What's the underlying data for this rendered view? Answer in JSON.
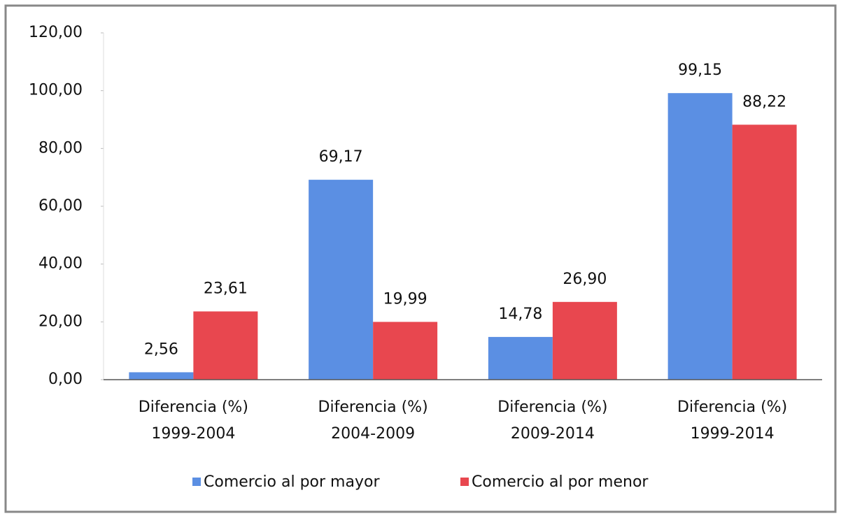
{
  "chart_data": {
    "type": "bar",
    "categories": [
      [
        "Diferencia (%)",
        "1999-2004"
      ],
      [
        "Diferencia (%)",
        "2004-2009"
      ],
      [
        "Diferencia (%)",
        "2009-2014"
      ],
      [
        "Diferencia (%)",
        "1999-2014"
      ]
    ],
    "series": [
      {
        "name": "Comercio al por mayor",
        "color": "#5b8fe3",
        "values": [
          2.56,
          69.17,
          14.78,
          99.15
        ],
        "value_labels": [
          "2,56",
          "69,17",
          "14,78",
          "99,15"
        ]
      },
      {
        "name": "Comercio al por menor",
        "color": "#e8474f",
        "values": [
          23.61,
          19.99,
          26.9,
          88.22
        ],
        "value_labels": [
          "23,61",
          "19,99",
          "26,90",
          "88,22"
        ]
      }
    ],
    "ylim": [
      0,
      120
    ],
    "yticks": [
      {
        "value": 0,
        "label": "0,00"
      },
      {
        "value": 20,
        "label": "20,00"
      },
      {
        "value": 40,
        "label": "40,00"
      },
      {
        "value": 60,
        "label": "60,00"
      },
      {
        "value": 80,
        "label": "80,00"
      },
      {
        "value": 100,
        "label": "100,00"
      },
      {
        "value": 120,
        "label": "120,00"
      }
    ],
    "legend": "bottom"
  }
}
